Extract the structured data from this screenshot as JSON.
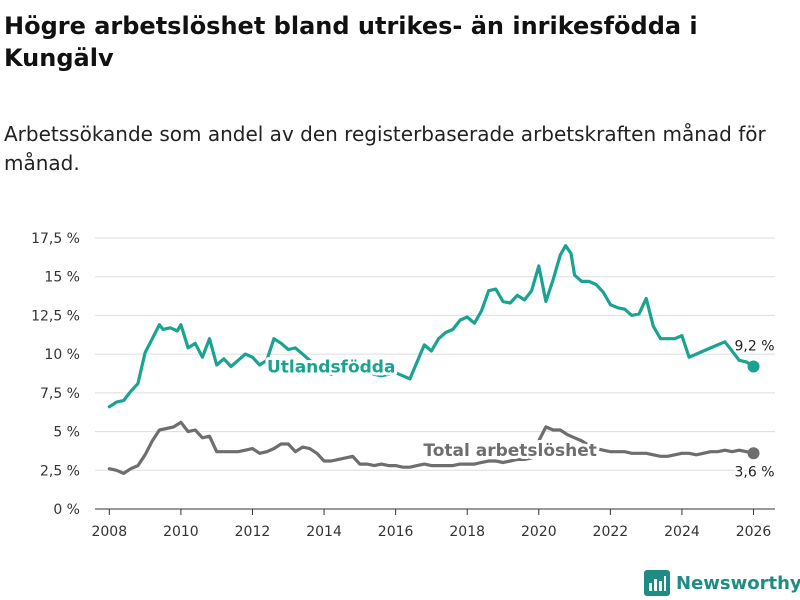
{
  "chart_data": {
    "type": "line",
    "title": "Högre arbetslöshet bland utrikes- än inrikesfödda i Kungälv",
    "subtitle": "Arbetssökande som andel av den registerbaserade arbetskraften månad för månad.",
    "xlabel": "",
    "ylabel": "",
    "xlim": [
      2007.6,
      2026.6
    ],
    "ylim": [
      0,
      17.5
    ],
    "y_ticks": [
      {
        "value": 0,
        "label": "0 %"
      },
      {
        "value": 2.5,
        "label": "2,5 %"
      },
      {
        "value": 5,
        "label": "5 %"
      },
      {
        "value": 7.5,
        "label": "7,5 %"
      },
      {
        "value": 10,
        "label": "10 %"
      },
      {
        "value": 12.5,
        "label": "12,5 %"
      },
      {
        "value": 15,
        "label": "15 %"
      },
      {
        "value": 17.5,
        "label": "17,5 %"
      }
    ],
    "x_ticks": [
      {
        "value": 2008,
        "label": "2008"
      },
      {
        "value": 2010,
        "label": "2010"
      },
      {
        "value": 2012,
        "label": "2012"
      },
      {
        "value": 2014,
        "label": "2014"
      },
      {
        "value": 2016,
        "label": "2016"
      },
      {
        "value": 2018,
        "label": "2018"
      },
      {
        "value": 2020,
        "label": "2020"
      },
      {
        "value": 2022,
        "label": "2022"
      },
      {
        "value": 2024,
        "label": "2024"
      },
      {
        "value": 2026,
        "label": "2026"
      }
    ],
    "grid": true,
    "series": [
      {
        "name": "Utlandsfödda",
        "color": "#1aa391",
        "x": [
          2008.0,
          2008.2,
          2008.4,
          2008.6,
          2008.8,
          2009.0,
          2009.2,
          2009.4,
          2009.5,
          2009.7,
          2009.9,
          2010.0,
          2010.2,
          2010.4,
          2010.6,
          2010.8,
          2011.0,
          2011.2,
          2011.4,
          2011.6,
          2011.8,
          2012.0,
          2012.2,
          2012.4,
          2012.6,
          2012.8,
          2013.0,
          2013.2,
          2013.4,
          2013.6,
          2013.8,
          2014.0,
          2014.2,
          2014.4,
          2014.6,
          2014.8,
          2015.0,
          2015.2,
          2015.4,
          2015.6,
          2015.8,
          2016.0,
          2016.2,
          2016.4,
          2016.6,
          2016.8,
          2017.0,
          2017.2,
          2017.4,
          2017.6,
          2017.8,
          2018.0,
          2018.2,
          2018.4,
          2018.6,
          2018.8,
          2019.0,
          2019.2,
          2019.4,
          2019.6,
          2019.8,
          2020.0,
          2020.2,
          2020.4,
          2020.6,
          2020.75,
          2020.9,
          2021.0,
          2021.2,
          2021.4,
          2021.6,
          2021.8,
          2022.0,
          2022.2,
          2022.4,
          2022.6,
          2022.8,
          2023.0,
          2023.2,
          2023.4,
          2023.6,
          2023.8,
          2024.0,
          2024.2,
          2024.4,
          2024.6,
          2024.8,
          2025.0,
          2025.2,
          2025.4,
          2025.6,
          2025.8,
          2026.0
        ],
        "values": [
          6.6,
          6.9,
          7.0,
          7.6,
          8.1,
          10.1,
          11.0,
          11.9,
          11.6,
          11.7,
          11.5,
          11.9,
          10.4,
          10.7,
          9.8,
          11.0,
          9.3,
          9.7,
          9.2,
          9.6,
          10.0,
          9.8,
          9.3,
          9.6,
          11.0,
          10.7,
          10.3,
          10.4,
          10.0,
          9.6,
          9.2,
          8.9,
          8.7,
          8.9,
          9.0,
          9.6,
          9.3,
          8.9,
          8.7,
          8.6,
          8.7,
          8.8,
          8.6,
          8.4,
          9.5,
          10.6,
          10.2,
          11.0,
          11.4,
          11.6,
          12.2,
          12.4,
          12.0,
          12.8,
          14.1,
          14.2,
          13.4,
          13.3,
          13.8,
          13.5,
          14.1,
          15.7,
          13.4,
          14.8,
          16.4,
          17.0,
          16.5,
          15.1,
          14.7,
          14.7,
          14.5,
          14.0,
          13.2,
          13.0,
          12.9,
          12.5,
          12.6,
          13.6,
          11.8,
          11.0,
          11.0,
          11.0,
          11.2,
          9.8,
          10.0,
          10.2,
          10.4,
          10.6,
          10.8,
          10.2,
          9.6,
          9.5,
          9.2
        ]
      },
      {
        "name": "Total arbetslöshet",
        "color": "#6e6e6e",
        "x": [
          2008.0,
          2008.2,
          2008.4,
          2008.6,
          2008.8,
          2009.0,
          2009.2,
          2009.4,
          2009.6,
          2009.8,
          2010.0,
          2010.2,
          2010.4,
          2010.6,
          2010.8,
          2011.0,
          2011.2,
          2011.4,
          2011.6,
          2011.8,
          2012.0,
          2012.2,
          2012.4,
          2012.6,
          2012.8,
          2013.0,
          2013.2,
          2013.4,
          2013.6,
          2013.8,
          2014.0,
          2014.2,
          2014.4,
          2014.6,
          2014.8,
          2015.0,
          2015.2,
          2015.4,
          2015.6,
          2015.8,
          2016.0,
          2016.2,
          2016.4,
          2016.6,
          2016.8,
          2017.0,
          2017.2,
          2017.4,
          2017.6,
          2017.8,
          2018.0,
          2018.2,
          2018.4,
          2018.6,
          2018.8,
          2019.0,
          2019.2,
          2019.4,
          2019.6,
          2019.8,
          2020.0,
          2020.2,
          2020.4,
          2020.6,
          2020.8,
          2021.0,
          2021.2,
          2021.4,
          2021.6,
          2021.8,
          2022.0,
          2022.2,
          2022.4,
          2022.6,
          2022.8,
          2023.0,
          2023.2,
          2023.4,
          2023.6,
          2023.8,
          2024.0,
          2024.2,
          2024.4,
          2024.6,
          2024.8,
          2025.0,
          2025.2,
          2025.4,
          2025.6,
          2025.8,
          2026.0
        ],
        "values": [
          2.6,
          2.5,
          2.3,
          2.6,
          2.8,
          3.5,
          4.4,
          5.1,
          5.2,
          5.3,
          5.6,
          5.0,
          5.1,
          4.6,
          4.7,
          3.7,
          3.7,
          3.7,
          3.7,
          3.8,
          3.9,
          3.6,
          3.7,
          3.9,
          4.2,
          4.2,
          3.7,
          4.0,
          3.9,
          3.6,
          3.1,
          3.1,
          3.2,
          3.3,
          3.4,
          2.9,
          2.9,
          2.8,
          2.9,
          2.8,
          2.8,
          2.7,
          2.7,
          2.8,
          2.9,
          2.8,
          2.8,
          2.8,
          2.8,
          2.9,
          2.9,
          2.9,
          3.0,
          3.1,
          3.1,
          3.0,
          3.1,
          3.2,
          3.2,
          3.3,
          4.4,
          5.3,
          5.1,
          5.1,
          4.8,
          4.6,
          4.4,
          4.1,
          3.9,
          3.8,
          3.7,
          3.7,
          3.7,
          3.6,
          3.6,
          3.6,
          3.5,
          3.4,
          3.4,
          3.5,
          3.6,
          3.6,
          3.5,
          3.6,
          3.7,
          3.7,
          3.8,
          3.7,
          3.8,
          3.7,
          3.6
        ]
      }
    ],
    "annotations": [
      {
        "text": "Utlandsfödda",
        "series": "Utlandsfödda",
        "x": 2014.2,
        "y": 9.2,
        "color": "#1aa391"
      },
      {
        "text": "Total arbetslöshet",
        "series": "Total arbetslöshet",
        "x": 2019.2,
        "y": 3.8,
        "color": "#6e6e6e"
      }
    ],
    "end_labels": [
      {
        "series": "Utlandsfödda",
        "x": 2026.0,
        "y": 9.2,
        "text": "9,2 %",
        "color": "#1aa391"
      },
      {
        "series": "Total arbetslöshet",
        "x": 2026.0,
        "y": 3.6,
        "text": "3,6 %",
        "color": "#6e6e6e"
      }
    ]
  },
  "branding": {
    "logo_text": "Newsworthy",
    "logo_icon": "bar-chart-icon",
    "color": "#1f8c84"
  }
}
